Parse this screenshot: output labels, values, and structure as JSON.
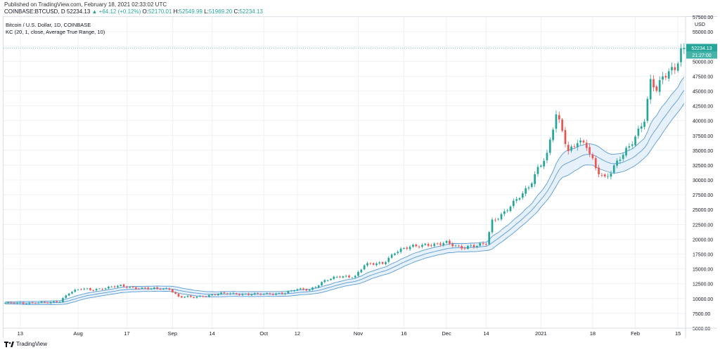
{
  "header": {
    "published": "Published on TradingView.com, February 18, 2021 02:33:02 UTC",
    "symbol": "COINBASE:BTCUSD, D",
    "last": "52234.13",
    "change": "▲ +64.12 (+0.12%)",
    "open_label": "O:",
    "open": "52170.01",
    "high_label": "H:",
    "high": "52549.99",
    "low_label": "L:",
    "low": "51969.20",
    "close_label": "C:",
    "close": "52234.13"
  },
  "legend": {
    "title": "Bitcoin / U.S. Dollar, 1D, COINBASE",
    "indicator": "KC (20, 1, close, Average True Range, 10)"
  },
  "price_scale": {
    "currency": "USD",
    "last_price_badge": "52234.13",
    "countdown_badge": "21:27:00"
  },
  "footer": {
    "brand": "TradingView"
  },
  "colors": {
    "up": "#26a69a",
    "down": "#ef5350",
    "band": "#5b9bd5",
    "band_fill": "#e3f0fb",
    "grid": "#eef1f5"
  },
  "chart_data": {
    "type": "candlestick",
    "title": "Bitcoin / U.S. Dollar, 1D, COINBASE",
    "ylabel": "USD",
    "ylim": [
      5000,
      57500
    ],
    "y_ticks": [
      5000,
      7500,
      10000,
      12500,
      15000,
      17500,
      20000,
      22500,
      25000,
      27500,
      30000,
      32500,
      35000,
      37500,
      40000,
      42500,
      45000,
      47500,
      50000,
      52500,
      55000,
      57500
    ],
    "y_tick_labels": [
      "5000.00",
      "7500.00",
      "10000.00",
      "12500.00",
      "15000.00",
      "17500.00",
      "20000.00",
      "22500.00",
      "25000.00",
      "27500.00",
      "30000.00",
      "32500.00",
      "35000.00",
      "37500.00",
      "40000.00",
      "42500.00",
      "45000.00",
      "47500.00",
      "50000.00",
      "52500.00",
      "55000.00",
      "57500.00"
    ],
    "x_ticks": [
      {
        "label": "13",
        "day": 5
      },
      {
        "label": "Aug",
        "day": 24
      },
      {
        "label": "17",
        "day": 40
      },
      {
        "label": "Sep",
        "day": 55
      },
      {
        "label": "14",
        "day": 68
      },
      {
        "label": "Oct",
        "day": 85
      },
      {
        "label": "12",
        "day": 96
      },
      {
        "label": "Nov",
        "day": 116
      },
      {
        "label": "16",
        "day": 131
      },
      {
        "label": "Dec",
        "day": 145
      },
      {
        "label": "14",
        "day": 158
      },
      {
        "label": "2021",
        "day": 176
      },
      {
        "label": "18",
        "day": 193
      },
      {
        "label": "Feb",
        "day": 207
      },
      {
        "label": "15",
        "day": 221
      }
    ],
    "close_anchors": [
      [
        0,
        9200
      ],
      [
        10,
        9300
      ],
      [
        14,
        9250
      ],
      [
        18,
        9600
      ],
      [
        21,
        11000
      ],
      [
        25,
        11600
      ],
      [
        28,
        11500
      ],
      [
        33,
        11800
      ],
      [
        38,
        12100
      ],
      [
        42,
        11900
      ],
      [
        48,
        11600
      ],
      [
        54,
        11700
      ],
      [
        57,
        10300
      ],
      [
        62,
        10200
      ],
      [
        70,
        10800
      ],
      [
        78,
        10800
      ],
      [
        85,
        10700
      ],
      [
        92,
        11000
      ],
      [
        96,
        11500
      ],
      [
        100,
        11500
      ],
      [
        105,
        13000
      ],
      [
        110,
        13700
      ],
      [
        115,
        13800
      ],
      [
        118,
        15600
      ],
      [
        124,
        16000
      ],
      [
        128,
        17800
      ],
      [
        134,
        18800
      ],
      [
        138,
        19200
      ],
      [
        142,
        19000
      ],
      [
        145,
        19400
      ],
      [
        150,
        18700
      ],
      [
        155,
        18800
      ],
      [
        158,
        19300
      ],
      [
        160,
        23200
      ],
      [
        164,
        24500
      ],
      [
        168,
        26500
      ],
      [
        172,
        29000
      ],
      [
        175,
        32000
      ],
      [
        178,
        34000
      ],
      [
        181,
        41000
      ],
      [
        183,
        38500
      ],
      [
        185,
        35000
      ],
      [
        188,
        36500
      ],
      [
        191,
        35500
      ],
      [
        194,
        32000
      ],
      [
        197,
        30500
      ],
      [
        199,
        31500
      ],
      [
        202,
        33500
      ],
      [
        205,
        35500
      ],
      [
        208,
        38500
      ],
      [
        210,
        40500
      ],
      [
        212,
        46500
      ],
      [
        214,
        45000
      ],
      [
        216,
        47000
      ],
      [
        218,
        48500
      ],
      [
        220,
        49000
      ],
      [
        222,
        52234
      ]
    ],
    "last_close": 52234.13,
    "series": [
      {
        "name": "KC (20, 1, close, Average True Range, 10)",
        "type": "keltner_channel",
        "length": 20,
        "multiplier": 1,
        "source": "close"
      }
    ],
    "grid": true,
    "legend_position": "top-left"
  }
}
